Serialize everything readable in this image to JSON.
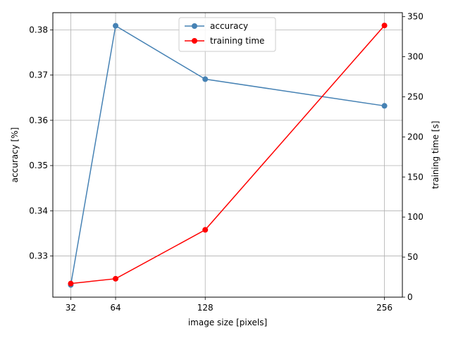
{
  "chart_data": {
    "type": "line",
    "xlabel": "image size [pixels]",
    "ylabel_left": "accuracy [%]",
    "ylabel_right": "training time [s]",
    "x": [
      32,
      64,
      128,
      256
    ],
    "xticks": [
      "32",
      "64",
      "128",
      "256"
    ],
    "xlim": [
      19.2,
      268.8
    ],
    "ylim_left": [
      0.3209,
      0.3838
    ],
    "ylim_right": [
      0,
      355
    ],
    "yticks_left": [
      "0.33",
      "0.34",
      "0.35",
      "0.36",
      "0.37",
      "0.38"
    ],
    "yticks_right": [
      "0",
      "50",
      "100",
      "150",
      "200",
      "250",
      "300",
      "350"
    ],
    "grid": true,
    "legend_position": "top-center",
    "series": [
      {
        "name": "accuracy",
        "axis": "left",
        "color": "#4682b4",
        "values": [
          0.3236,
          0.3809,
          0.3691,
          0.3632
        ]
      },
      {
        "name": "training time",
        "axis": "right",
        "color": "#ff0000",
        "values": [
          17,
          23,
          84,
          339
        ]
      }
    ]
  }
}
